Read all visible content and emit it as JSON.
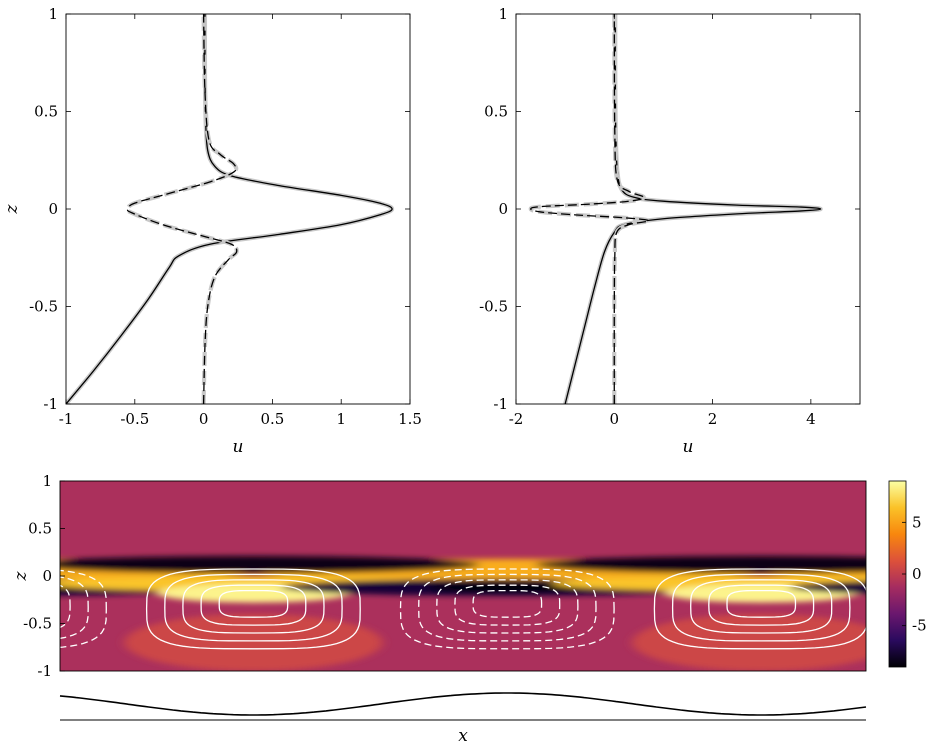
{
  "chart_data": [
    {
      "id": "top-left",
      "type": "line",
      "xlabel": "u",
      "ylabel": "z",
      "xlim": [
        -1,
        1.5
      ],
      "ylim": [
        -1,
        1
      ],
      "xticks": [
        -1,
        -0.5,
        0,
        0.5,
        1,
        1.5
      ],
      "xtick_labels": [
        "-1",
        "-0.5",
        "0",
        "0.5",
        "1",
        "1.5"
      ],
      "yticks": [
        -1,
        -0.5,
        0,
        0.5,
        1
      ],
      "ytick_labels": [
        "-1",
        "-0.5",
        "0",
        "0.5",
        "1"
      ],
      "series": [
        {
          "style": "solid-grey-wide",
          "x": [
            -1.0,
            -0.8,
            -0.6,
            -0.4,
            -0.25,
            -0.18,
            0.05,
            0.55,
            1.0,
            1.28,
            1.37,
            1.28,
            1.0,
            0.55,
            0.2,
            0.08,
            0.03,
            0.015,
            0.01,
            0.01
          ],
          "y": [
            -1.0,
            -0.83,
            -0.65,
            -0.46,
            -0.3,
            -0.24,
            -0.18,
            -0.13,
            -0.08,
            -0.03,
            0.0,
            0.03,
            0.07,
            0.12,
            0.17,
            0.22,
            0.3,
            0.45,
            0.7,
            1.0
          ]
        },
        {
          "style": "solid-black",
          "x": [
            -1.0,
            -0.8,
            -0.6,
            -0.4,
            -0.25,
            -0.18,
            0.05,
            0.55,
            1.0,
            1.28,
            1.37,
            1.28,
            1.0,
            0.55,
            0.2,
            0.08,
            0.03,
            0.015,
            0.01,
            0.01
          ],
          "y": [
            -1.0,
            -0.83,
            -0.65,
            -0.46,
            -0.3,
            -0.24,
            -0.18,
            -0.13,
            -0.08,
            -0.03,
            0.0,
            0.03,
            0.07,
            0.12,
            0.17,
            0.22,
            0.3,
            0.45,
            0.7,
            1.0
          ]
        },
        {
          "style": "dashed-grey-wide",
          "x": [
            0.0,
            0.01,
            0.03,
            0.08,
            0.18,
            0.24,
            0.2,
            0.0,
            -0.3,
            -0.52,
            -0.55,
            -0.5,
            -0.25,
            0.05,
            0.22,
            0.22,
            0.12,
            0.04,
            0.01,
            0.0
          ],
          "y": [
            -1.0,
            -0.7,
            -0.5,
            -0.35,
            -0.26,
            -0.22,
            -0.18,
            -0.14,
            -0.08,
            -0.02,
            0.0,
            0.03,
            0.08,
            0.14,
            0.19,
            0.23,
            0.28,
            0.35,
            0.6,
            1.0
          ]
        },
        {
          "style": "dashed-black",
          "x": [
            0.0,
            0.01,
            0.03,
            0.08,
            0.18,
            0.24,
            0.2,
            0.0,
            -0.3,
            -0.52,
            -0.55,
            -0.5,
            -0.25,
            0.05,
            0.22,
            0.22,
            0.12,
            0.04,
            0.01,
            0.0
          ],
          "y": [
            -1.0,
            -0.7,
            -0.5,
            -0.35,
            -0.26,
            -0.22,
            -0.18,
            -0.14,
            -0.08,
            -0.02,
            0.0,
            0.03,
            0.08,
            0.14,
            0.19,
            0.23,
            0.28,
            0.35,
            0.6,
            1.0
          ]
        }
      ]
    },
    {
      "id": "top-right",
      "type": "line",
      "xlabel": "u",
      "ylabel": "",
      "xlim": [
        -2,
        5
      ],
      "ylim": [
        -1,
        1
      ],
      "xticks": [
        -2,
        0,
        2,
        4
      ],
      "xtick_labels": [
        "-2",
        "0",
        "2",
        "4"
      ],
      "yticks": [
        -1,
        -0.5,
        0,
        0.5,
        1
      ],
      "ytick_labels": [
        "-1",
        "-0.5",
        "0",
        "0.5",
        "1"
      ],
      "series": [
        {
          "style": "solid-grey-wide",
          "x": [
            -1.0,
            -0.8,
            -0.6,
            -0.4,
            -0.2,
            0.0,
            0.2,
            1.0,
            2.5,
            3.8,
            4.2,
            3.8,
            2.5,
            1.0,
            0.4,
            0.15,
            0.06,
            0.03,
            0.02,
            0.02
          ],
          "y": [
            -1.0,
            -0.8,
            -0.6,
            -0.4,
            -0.22,
            -0.12,
            -0.08,
            -0.05,
            -0.025,
            -0.01,
            0.0,
            0.01,
            0.02,
            0.04,
            0.06,
            0.1,
            0.2,
            0.4,
            0.7,
            1.0
          ]
        },
        {
          "style": "solid-black",
          "x": [
            -1.0,
            -0.8,
            -0.6,
            -0.4,
            -0.2,
            0.0,
            0.2,
            1.0,
            2.5,
            3.8,
            4.2,
            3.8,
            2.5,
            1.0,
            0.4,
            0.15,
            0.06,
            0.03,
            0.02,
            0.02
          ],
          "y": [
            -1.0,
            -0.8,
            -0.6,
            -0.4,
            -0.22,
            -0.12,
            -0.08,
            -0.05,
            -0.025,
            -0.01,
            0.0,
            0.01,
            0.02,
            0.04,
            0.06,
            0.1,
            0.2,
            0.4,
            0.7,
            1.0
          ]
        },
        {
          "style": "dashed-grey-wide",
          "x": [
            0.0,
            0.0,
            0.01,
            0.05,
            0.3,
            0.7,
            0.2,
            -0.8,
            -1.5,
            -1.7,
            -1.5,
            -0.5,
            0.3,
            0.6,
            0.3,
            0.06,
            0.01,
            0.0
          ],
          "y": [
            -1.0,
            -0.5,
            -0.25,
            -0.12,
            -0.08,
            -0.06,
            -0.045,
            -0.03,
            -0.015,
            0.0,
            0.012,
            0.025,
            0.04,
            0.06,
            0.09,
            0.15,
            0.4,
            1.0
          ]
        },
        {
          "style": "dashed-black",
          "x": [
            0.0,
            0.0,
            0.01,
            0.05,
            0.3,
            0.7,
            0.2,
            -0.8,
            -1.5,
            -1.7,
            -1.5,
            -0.5,
            0.3,
            0.6,
            0.3,
            0.06,
            0.01,
            0.0
          ],
          "y": [
            -1.0,
            -0.5,
            -0.25,
            -0.12,
            -0.08,
            -0.06,
            -0.045,
            -0.03,
            -0.015,
            0.0,
            0.012,
            0.025,
            0.04,
            0.06,
            0.09,
            0.15,
            0.4,
            1.0
          ]
        }
      ]
    },
    {
      "id": "bottom",
      "type": "heatmap",
      "xlabel": "x",
      "ylabel": "z",
      "xlim": [
        0,
        1
      ],
      "ylim": [
        -1,
        1
      ],
      "yticks": [
        -1,
        -0.5,
        0,
        0.5,
        1
      ],
      "ytick_labels": [
        "-1",
        "-0.5",
        "0",
        "0.5",
        "1"
      ],
      "colormap": [
        "#000004",
        "#2a0a5e",
        "#6a176e",
        "#a52c60",
        "#dd513a",
        "#f8870e",
        "#fac228",
        "#fcffa4"
      ],
      "clim": [
        -9,
        9
      ],
      "colorbar_ticks": [
        5,
        0,
        -5
      ],
      "colorbar_labels": [
        "5",
        "0",
        "-5"
      ],
      "background_value": -1.0,
      "contour_levels_positive": [
        0.6,
        1.2,
        1.8,
        2.4,
        3.0
      ],
      "contour_levels_negative": [
        -0.6,
        -1.2,
        -1.8,
        -2.4,
        -3.0
      ],
      "bottom_wave": {
        "amplitude": 0.5,
        "periods_visible": 1.5
      }
    }
  ]
}
